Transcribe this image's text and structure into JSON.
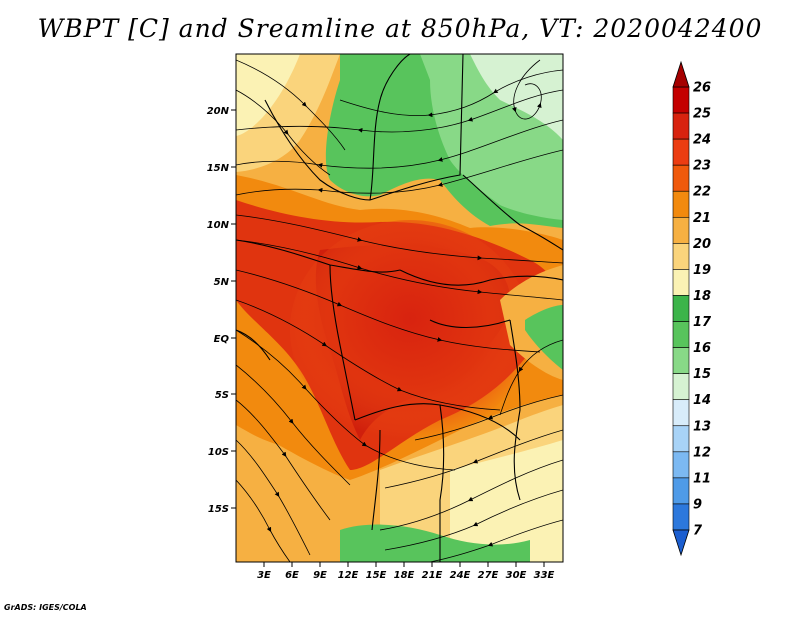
{
  "title": "WBPT [C] and Sreamline at 850hPa, VT: 2020042400",
  "credit": "GrADS: IGES/COLA",
  "lat_labels": [
    "20N",
    "15N",
    "10N",
    "5N",
    "EQ",
    "5S",
    "10S",
    "15S"
  ],
  "lon_labels": [
    "3E",
    "6E",
    "9E",
    "12E",
    "15E",
    "18E",
    "21E",
    "24E",
    "27E",
    "30E",
    "33E"
  ],
  "colorbar": {
    "labels": [
      "26",
      "25",
      "24",
      "23",
      "22",
      "21",
      "20",
      "19",
      "18",
      "17",
      "16",
      "15",
      "14",
      "13",
      "12",
      "11",
      "9",
      "7"
    ],
    "colors": [
      "#a50000",
      "#c40000",
      "#d8230f",
      "#ec3d12",
      "#f05a0c",
      "#f28a0e",
      "#f6b042",
      "#fad47c",
      "#fbf2b4",
      "#3cb44a",
      "#58c45c",
      "#88d987",
      "#d6f2d2",
      "#d8ecfa",
      "#a8d3f7",
      "#7cb9f2",
      "#4f9be8",
      "#2c78dc",
      "#1b5ed0"
    ]
  }
}
